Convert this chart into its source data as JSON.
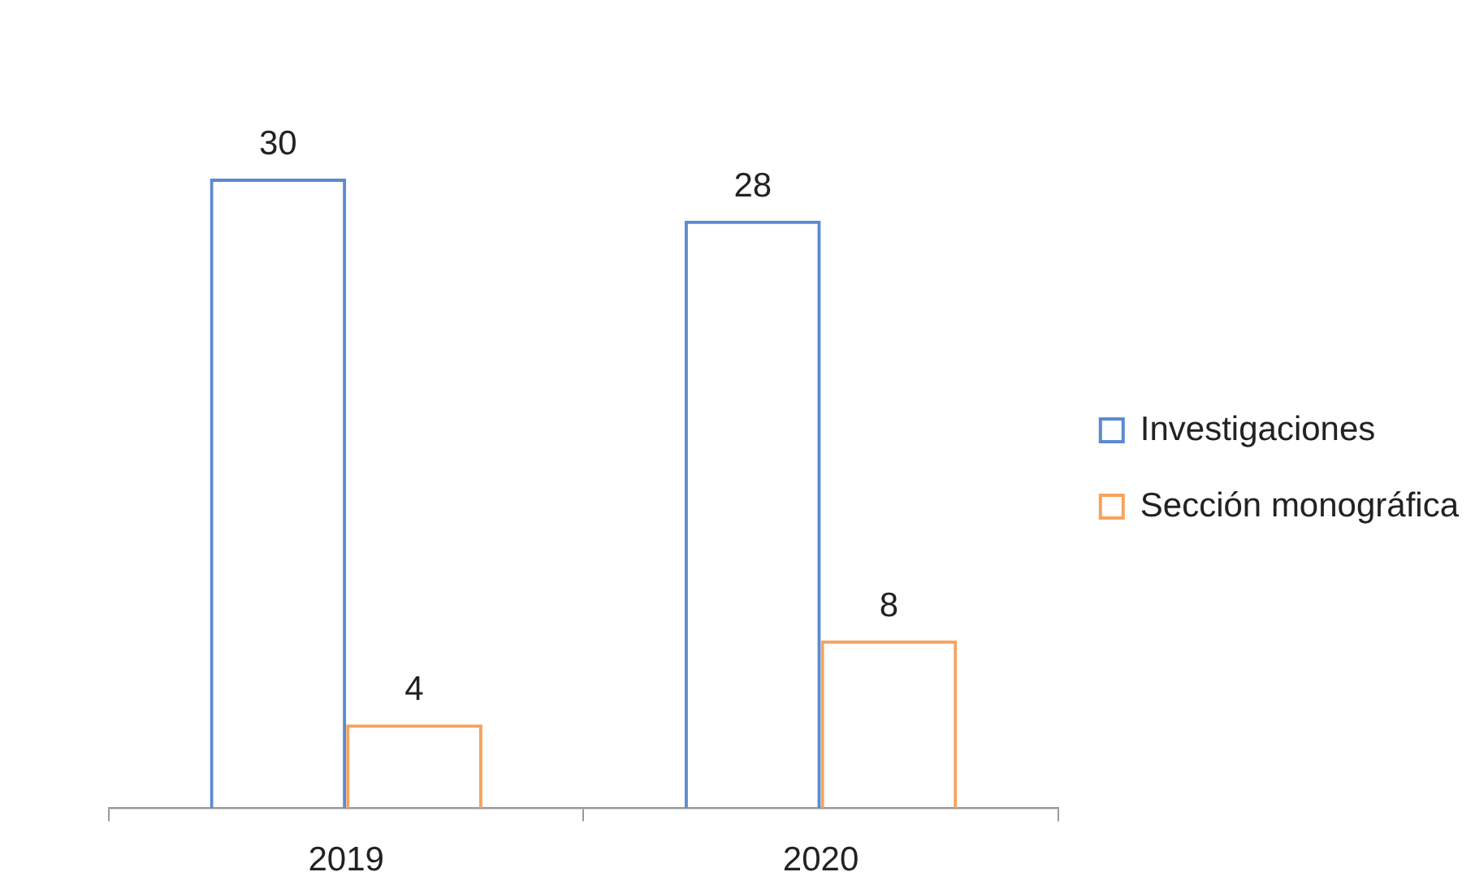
{
  "chart_data": {
    "type": "bar",
    "categories": [
      "2019",
      "2020"
    ],
    "series": [
      {
        "name": "Investigaciones",
        "color": "#5b8bd0",
        "values": [
          30,
          28
        ]
      },
      {
        "name": "Sección monográfica",
        "color": "#f5a35e",
        "values": [
          4,
          8
        ]
      }
    ],
    "data_labels": true,
    "legend": "right",
    "grid": false
  }
}
